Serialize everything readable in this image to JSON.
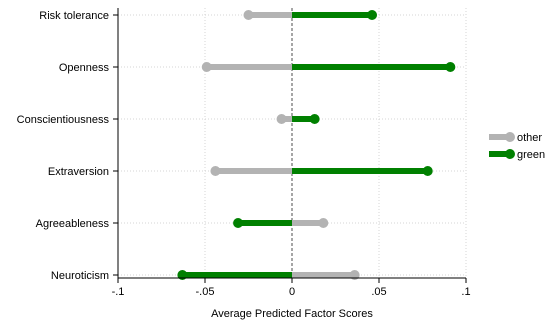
{
  "chart_data": {
    "type": "dumbbell",
    "title": "",
    "xlabel": "Average Predicted Factor Scores",
    "ylabel": "",
    "xlim": [
      -0.1,
      0.1
    ],
    "x_ticks": [
      -0.1,
      -0.05,
      0,
      0.05,
      0.1
    ],
    "x_tick_labels": [
      "-.1",
      "-.05",
      "0",
      ".05",
      ".1"
    ],
    "categories": [
      "Risk tolerance",
      "Openness",
      "Conscientiousness",
      "Extraversion",
      "Agreeableness",
      "Neuroticism"
    ],
    "series": [
      {
        "name": "other",
        "color": "#b3b3b3",
        "values": [
          -0.025,
          -0.049,
          -0.006,
          -0.044,
          0.018,
          0.036
        ]
      },
      {
        "name": "green",
        "color": "#008000",
        "values": [
          0.046,
          0.091,
          0.013,
          0.078,
          -0.031,
          -0.063
        ]
      }
    ],
    "reference_line": 0,
    "grid": true,
    "legend_position": "right"
  }
}
